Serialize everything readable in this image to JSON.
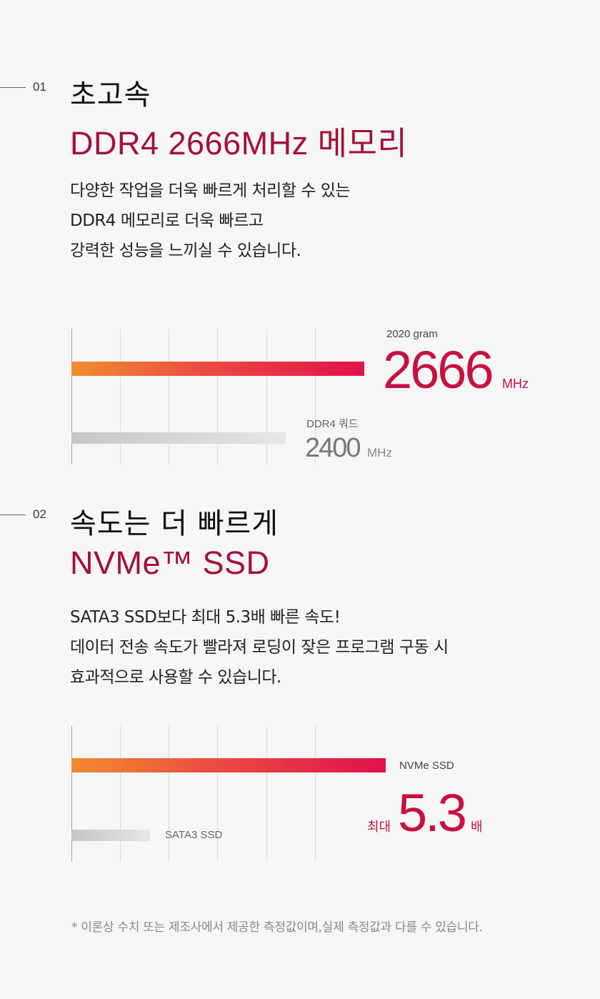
{
  "section1": {
    "number": "01",
    "title": "초고속",
    "subtitle": "DDR4 2666MHz 메모리",
    "desc": [
      "다양한 작업을 더욱 빠르게 처리할 수 있는",
      "DDR4 메모리로 더욱 빠르고",
      "강력한 성능을 느끼실 수 있습니다."
    ],
    "chart": {
      "primary_label": "2020 gram",
      "primary_value": "2666",
      "primary_unit": "MHz",
      "secondary_label": "DDR4 쿼드",
      "secondary_value": "2400",
      "secondary_unit": "MHz"
    }
  },
  "section2": {
    "number": "02",
    "title": "속도는 더 빠르게",
    "subtitle": "NVMe™ SSD",
    "desc": [
      "SATA3 SSD보다 최대 5.3배 빠른 속도!",
      "데이터 전송 속도가 빨라져 로딩이 잦은 프로그램 구동 시",
      "효과적으로 사용할 수 있습니다."
    ],
    "chart": {
      "primary_label": "NVMe SSD",
      "prefix": "최대",
      "primary_value": "5.3",
      "suffix": "배",
      "secondary_label": "SATA3 SSD"
    }
  },
  "footnote": "* 이론상 수치 또는 제조사에서 제공한 측정값이며,실제 측정값과 다를 수 있습니다.",
  "colors": {
    "accent_red": "#c8103f",
    "title_red": "#a50f3a",
    "bar_gradient_start": "#f08c2e",
    "bar_gradient_end": "#e0124a",
    "bar_gray": "#d0d0d0"
  }
}
